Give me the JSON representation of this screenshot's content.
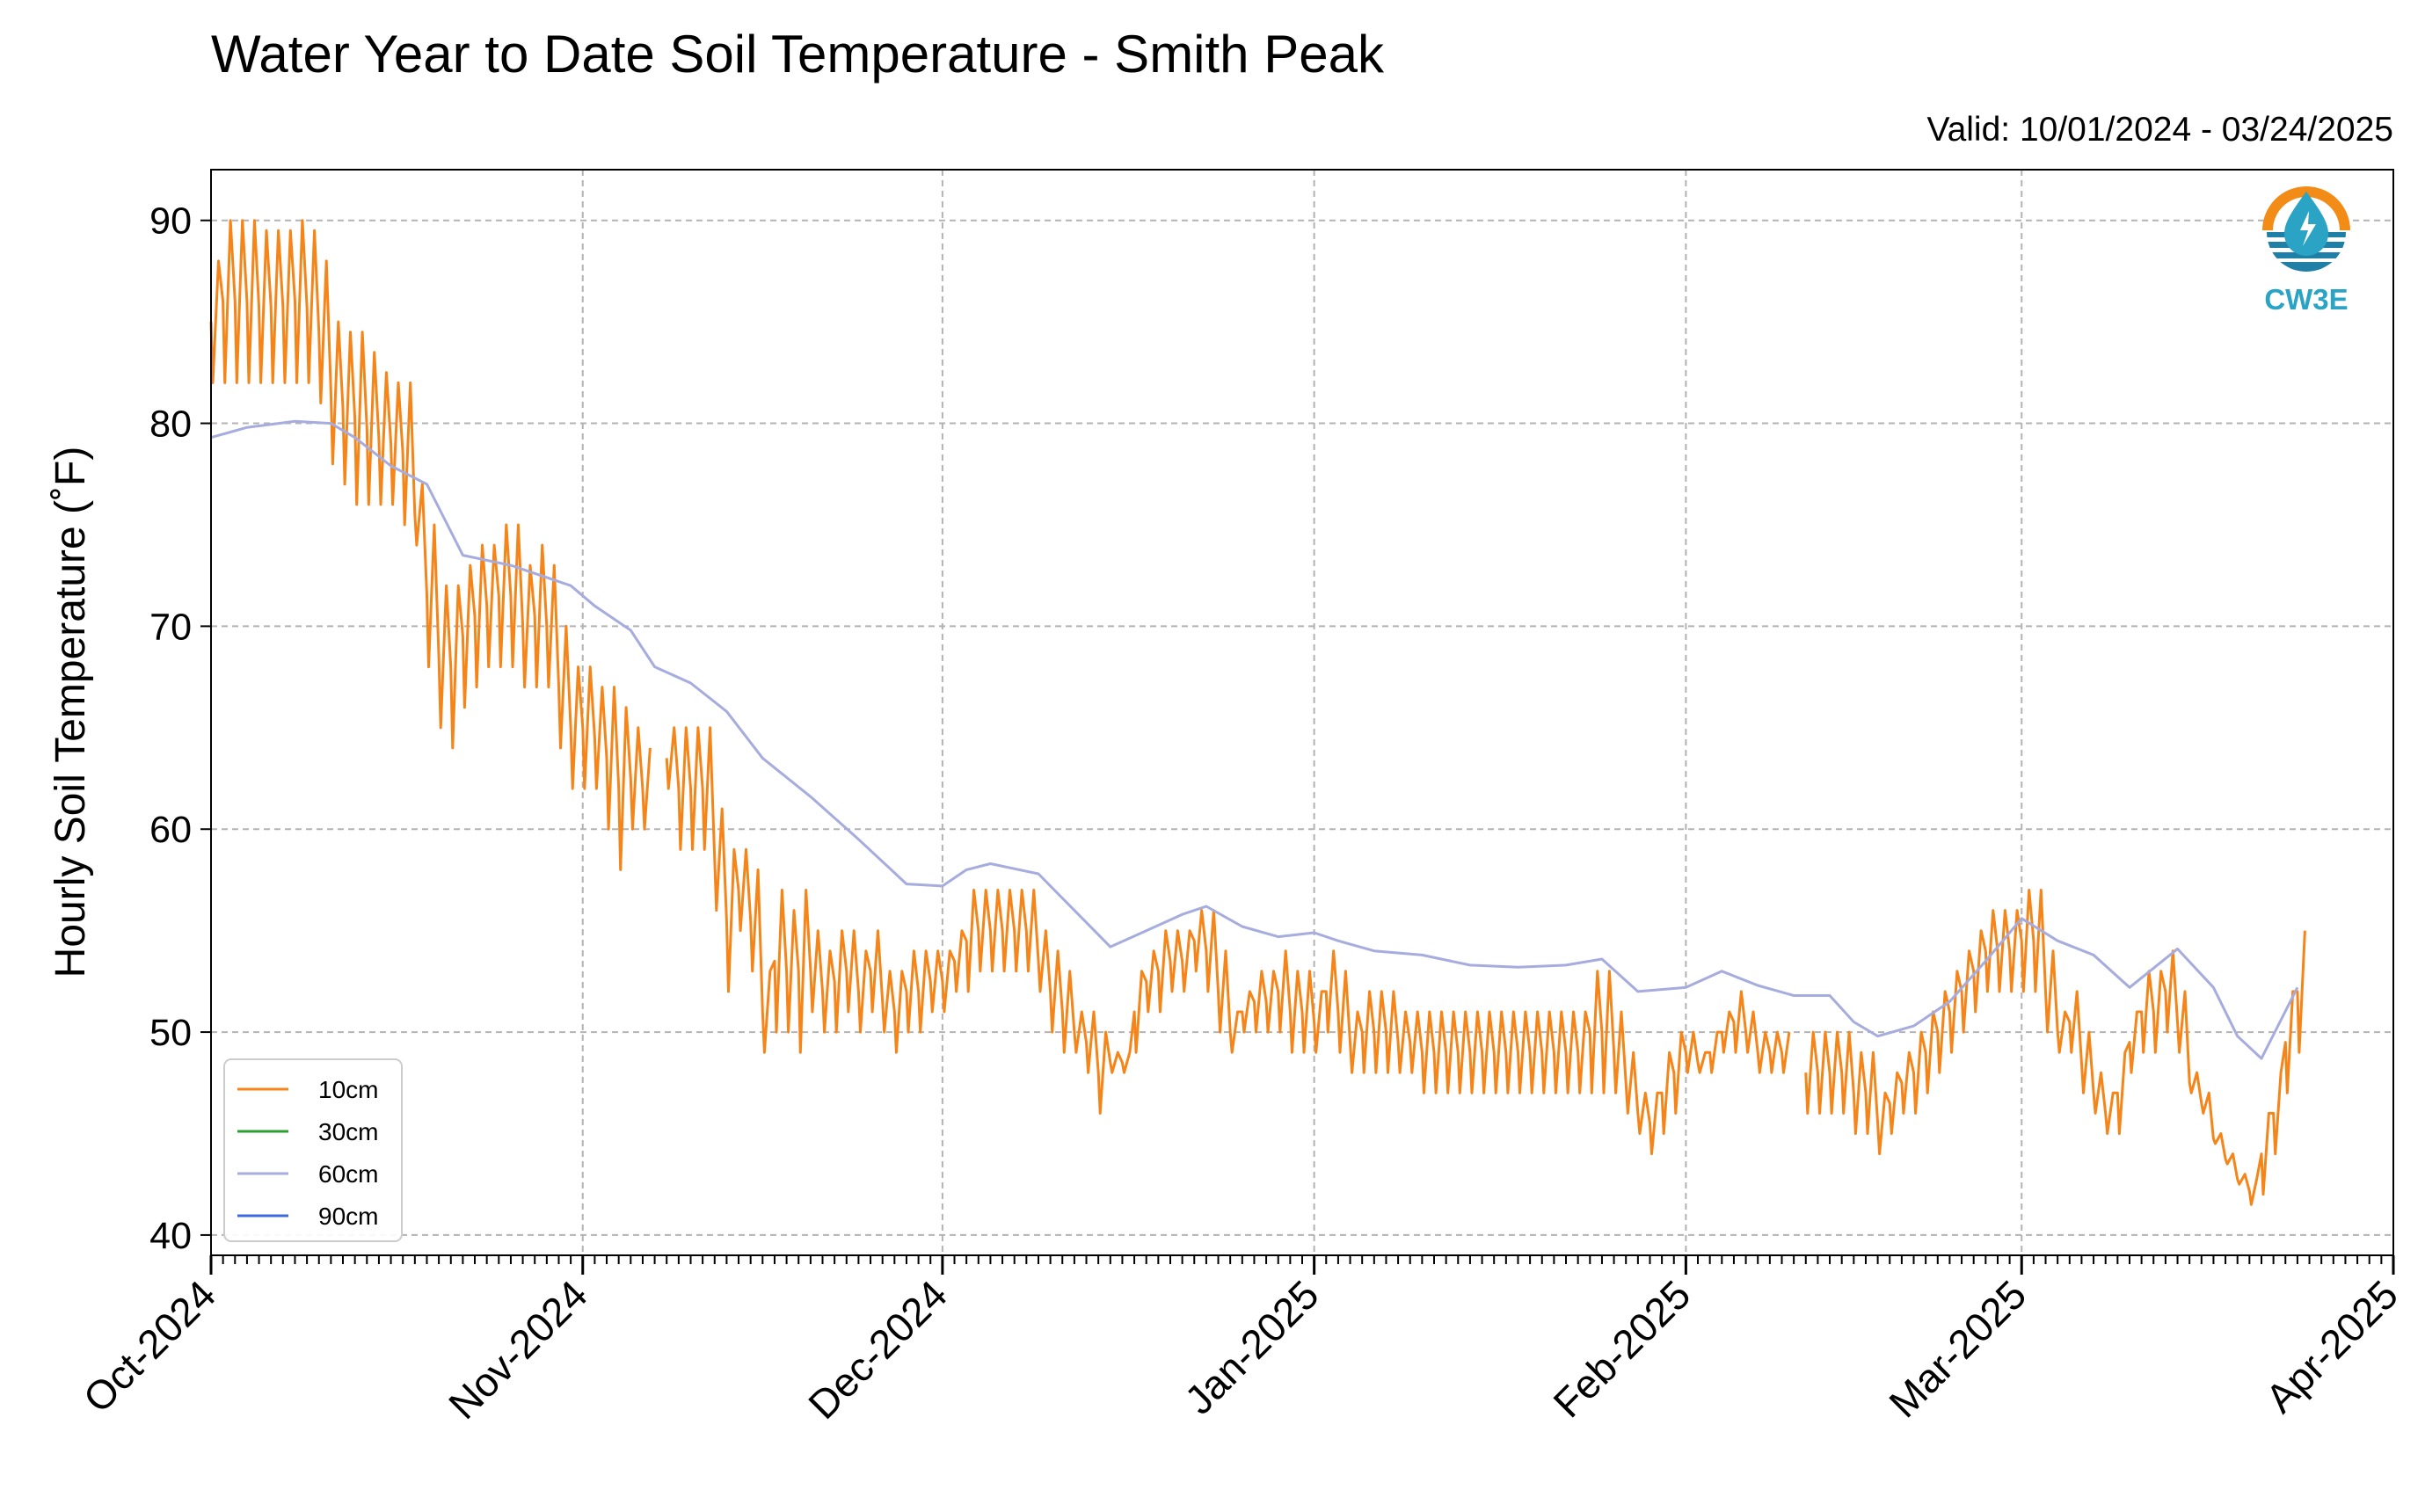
{
  "title": "Water Year to Date Soil Temperature - Smith Peak",
  "valid_range": "Valid: 10/01/2024 - 03/24/2025",
  "logo": {
    "text": "CW3E",
    "icon": "cw3e-water-drop-logo",
    "color": "#2aa3c4",
    "accent": "#f28c16"
  },
  "chart_data": {
    "type": "line",
    "title": "Water Year to Date Soil Temperature - Smith Peak",
    "ylabel": "Hourly Soil Temperature (˚F)",
    "xlabel": "",
    "xlim": [
      "2024-10-01",
      "2025-04-01"
    ],
    "ylim": [
      39,
      92.5
    ],
    "yticks": [
      40,
      50,
      60,
      70,
      80,
      90
    ],
    "xticks": [
      {
        "date": "2024-10-01",
        "label": "Oct-2024"
      },
      {
        "date": "2024-11-01",
        "label": "Nov-2024"
      },
      {
        "date": "2024-12-01",
        "label": "Dec-2024"
      },
      {
        "date": "2025-01-01",
        "label": "Jan-2025"
      },
      {
        "date": "2025-02-01",
        "label": "Feb-2025"
      },
      {
        "date": "2025-03-01",
        "label": "Mar-2025"
      },
      {
        "date": "2025-04-01",
        "label": "Apr-2025"
      }
    ],
    "grid": true,
    "legend_position": "lower-left",
    "series": [
      {
        "name": "10cm",
        "color": "#f58518",
        "daily": [
          [
            "2024-10-01",
            82,
            88
          ],
          [
            "2024-10-02",
            82,
            90
          ],
          [
            "2024-10-03",
            82,
            90
          ],
          [
            "2024-10-04",
            82,
            90
          ],
          [
            "2024-10-05",
            82,
            89.5
          ],
          [
            "2024-10-06",
            82,
            89.5
          ],
          [
            "2024-10-07",
            82,
            89.5
          ],
          [
            "2024-10-08",
            82,
            90
          ],
          [
            "2024-10-09",
            82,
            89.5
          ],
          [
            "2024-10-10",
            81,
            88
          ],
          [
            "2024-10-11",
            78,
            85
          ],
          [
            "2024-10-12",
            77,
            84.5
          ],
          [
            "2024-10-13",
            76,
            84.5
          ],
          [
            "2024-10-14",
            76,
            83.5
          ],
          [
            "2024-10-15",
            76,
            82.5
          ],
          [
            "2024-10-16",
            76,
            82
          ],
          [
            "2024-10-17",
            75,
            82
          ],
          [
            "2024-10-18",
            74,
            77
          ],
          [
            "2024-10-19",
            68,
            75
          ],
          [
            "2024-10-20",
            65,
            72
          ],
          [
            "2024-10-21",
            64,
            72
          ],
          [
            "2024-10-22",
            66,
            73
          ],
          [
            "2024-10-23",
            67,
            74
          ],
          [
            "2024-10-24",
            68,
            74
          ],
          [
            "2024-10-25",
            68,
            75
          ],
          [
            "2024-10-26",
            68,
            75
          ],
          [
            "2024-10-27",
            67,
            73
          ],
          [
            "2024-10-28",
            67,
            74
          ],
          [
            "2024-10-29",
            67,
            73
          ],
          [
            "2024-10-30",
            64,
            70
          ],
          [
            "2024-10-31",
            62,
            68
          ],
          [
            "2024-11-01",
            62,
            68
          ],
          [
            "2024-11-02",
            62,
            67
          ],
          [
            "2024-11-03",
            60,
            67
          ],
          [
            "2024-11-04",
            58,
            66
          ],
          [
            "2024-11-05",
            60,
            65
          ],
          [
            "2024-11-06",
            60,
            64
          ],
          [
            "2024-11-07",
            null,
            null
          ],
          [
            "2024-11-08",
            62,
            65
          ],
          [
            "2024-11-09",
            59,
            65
          ],
          [
            "2024-11-10",
            59,
            65
          ],
          [
            "2024-11-11",
            59,
            65
          ],
          [
            "2024-11-12",
            56,
            61
          ],
          [
            "2024-11-13",
            52,
            59
          ],
          [
            "2024-11-14",
            55,
            59
          ],
          [
            "2024-11-15",
            53,
            58
          ],
          [
            "2024-11-16",
            49,
            53
          ],
          [
            "2024-11-17",
            50,
            57
          ],
          [
            "2024-11-18",
            50,
            56
          ],
          [
            "2024-11-19",
            49,
            57
          ],
          [
            "2024-11-20",
            51,
            55
          ],
          [
            "2024-11-21",
            50,
            54
          ],
          [
            "2024-11-22",
            50,
            55
          ],
          [
            "2024-11-23",
            51,
            55
          ],
          [
            "2024-11-24",
            50,
            54
          ],
          [
            "2024-11-25",
            51,
            55
          ],
          [
            "2024-11-26",
            50,
            53
          ],
          [
            "2024-11-27",
            49,
            53
          ],
          [
            "2024-11-28",
            50,
            54
          ],
          [
            "2024-11-29",
            50,
            54
          ],
          [
            "2024-11-30",
            51,
            54
          ],
          [
            "2024-12-01",
            51,
            54
          ],
          [
            "2024-12-02",
            52,
            55
          ],
          [
            "2024-12-03",
            52,
            57
          ],
          [
            "2024-12-04",
            53,
            57
          ],
          [
            "2024-12-05",
            53,
            57
          ],
          [
            "2024-12-06",
            53,
            57
          ],
          [
            "2024-12-07",
            53,
            57
          ],
          [
            "2024-12-08",
            53,
            57
          ],
          [
            "2024-12-09",
            52,
            55
          ],
          [
            "2024-12-10",
            50,
            54
          ],
          [
            "2024-12-11",
            49,
            53
          ],
          [
            "2024-12-12",
            49,
            51
          ],
          [
            "2024-12-13",
            48,
            51
          ],
          [
            "2024-12-14",
            46,
            50
          ],
          [
            "2024-12-15",
            48,
            49
          ],
          [
            "2024-12-16",
            48,
            49
          ],
          [
            "2024-12-17",
            49,
            53
          ],
          [
            "2024-12-18",
            51,
            54
          ],
          [
            "2024-12-19",
            51,
            55
          ],
          [
            "2024-12-20",
            52,
            55
          ],
          [
            "2024-12-21",
            52,
            55
          ],
          [
            "2024-12-22",
            53,
            56
          ],
          [
            "2024-12-23",
            52,
            56
          ],
          [
            "2024-12-24",
            50,
            54
          ],
          [
            "2024-12-25",
            49,
            51
          ],
          [
            "2024-12-26",
            50,
            52
          ],
          [
            "2024-12-27",
            50,
            53
          ],
          [
            "2024-12-28",
            50,
            53
          ],
          [
            "2024-12-29",
            50,
            54
          ],
          [
            "2024-12-30",
            49,
            53
          ],
          [
            "2024-12-31",
            49,
            53
          ],
          [
            "2025-01-01",
            49,
            52
          ],
          [
            "2025-01-02",
            50,
            54
          ],
          [
            "2025-01-03",
            49,
            53
          ],
          [
            "2025-01-04",
            48,
            51
          ],
          [
            "2025-01-05",
            48,
            52
          ],
          [
            "2025-01-06",
            48,
            52
          ],
          [
            "2025-01-07",
            48,
            52
          ],
          [
            "2025-01-08",
            48,
            51
          ],
          [
            "2025-01-09",
            48,
            51
          ],
          [
            "2025-01-10",
            47,
            51
          ],
          [
            "2025-01-11",
            47,
            51
          ],
          [
            "2025-01-12",
            47,
            51
          ],
          [
            "2025-01-13",
            47,
            51
          ],
          [
            "2025-01-14",
            47,
            51
          ],
          [
            "2025-01-15",
            47,
            51
          ],
          [
            "2025-01-16",
            47,
            51
          ],
          [
            "2025-01-17",
            47,
            51
          ],
          [
            "2025-01-18",
            47,
            51
          ],
          [
            "2025-01-19",
            47,
            51
          ],
          [
            "2025-01-20",
            47,
            51
          ],
          [
            "2025-01-21",
            47,
            51
          ],
          [
            "2025-01-22",
            47,
            51
          ],
          [
            "2025-01-23",
            47,
            51
          ],
          [
            "2025-01-24",
            47,
            53
          ],
          [
            "2025-01-25",
            47,
            53
          ],
          [
            "2025-01-26",
            47,
            51
          ],
          [
            "2025-01-27",
            46,
            49
          ],
          [
            "2025-01-28",
            45,
            47
          ],
          [
            "2025-01-29",
            44,
            47
          ],
          [
            "2025-01-30",
            45,
            49
          ],
          [
            "2025-01-31",
            46,
            50
          ],
          [
            "2025-02-01",
            48,
            50
          ],
          [
            "2025-02-02",
            48,
            49
          ],
          [
            "2025-02-03",
            48,
            50
          ],
          [
            "2025-02-04",
            49,
            51
          ],
          [
            "2025-02-05",
            49,
            52
          ],
          [
            "2025-02-06",
            49,
            51
          ],
          [
            "2025-02-07",
            48,
            50
          ],
          [
            "2025-02-08",
            48,
            50
          ],
          [
            "2025-02-09",
            48,
            50
          ],
          [
            "2025-02-10",
            null,
            null
          ],
          [
            "2025-02-11",
            46,
            50
          ],
          [
            "2025-02-12",
            46,
            50
          ],
          [
            "2025-02-13",
            46,
            50
          ],
          [
            "2025-02-14",
            46,
            50
          ],
          [
            "2025-02-15",
            45,
            49
          ],
          [
            "2025-02-16",
            45,
            49
          ],
          [
            "2025-02-17",
            44,
            47
          ],
          [
            "2025-02-18",
            45,
            48
          ],
          [
            "2025-02-19",
            46,
            49
          ],
          [
            "2025-02-20",
            46,
            50
          ],
          [
            "2025-02-21",
            47,
            51
          ],
          [
            "2025-02-22",
            48,
            52
          ],
          [
            "2025-02-23",
            49,
            53
          ],
          [
            "2025-02-24",
            50,
            54
          ],
          [
            "2025-02-25",
            51,
            55
          ],
          [
            "2025-02-26",
            52,
            56
          ],
          [
            "2025-02-27",
            52,
            56
          ],
          [
            "2025-02-28",
            52,
            56
          ],
          [
            "2025-03-01",
            52,
            57
          ],
          [
            "2025-03-02",
            52,
            57
          ],
          [
            "2025-03-03",
            50,
            54
          ],
          [
            "2025-03-04",
            49,
            51
          ],
          [
            "2025-03-05",
            49,
            52
          ],
          [
            "2025-03-06",
            47,
            50
          ],
          [
            "2025-03-07",
            46,
            48
          ],
          [
            "2025-03-08",
            45,
            47
          ],
          [
            "2025-03-09",
            45,
            49
          ],
          [
            "2025-03-10",
            48,
            51
          ],
          [
            "2025-03-11",
            49,
            53
          ],
          [
            "2025-03-12",
            49,
            53
          ],
          [
            "2025-03-13",
            50,
            54
          ],
          [
            "2025-03-14",
            49,
            52
          ],
          [
            "2025-03-15",
            47,
            48
          ],
          [
            "2025-03-16",
            46,
            47
          ],
          [
            "2025-03-17",
            44.5,
            45
          ],
          [
            "2025-03-18",
            43.5,
            44
          ],
          [
            "2025-03-19",
            42.5,
            43
          ],
          [
            "2025-03-20",
            41.5,
            42.8
          ],
          [
            "2025-03-21",
            42,
            46
          ],
          [
            "2025-03-22",
            44,
            48
          ],
          [
            "2025-03-23",
            47,
            52
          ],
          [
            "2025-03-24",
            49,
            55
          ]
        ]
      },
      {
        "name": "30cm",
        "color": "#2ca02c",
        "points": []
      },
      {
        "name": "60cm",
        "color": "#a6acde",
        "points": [
          [
            "2024-10-01",
            79.3
          ],
          [
            "2024-10-04",
            79.8
          ],
          [
            "2024-10-08",
            80.1
          ],
          [
            "2024-10-11",
            80.0
          ],
          [
            "2024-10-13",
            79.3
          ],
          [
            "2024-10-16",
            77.9
          ],
          [
            "2024-10-19",
            77.0
          ],
          [
            "2024-10-22",
            73.5
          ],
          [
            "2024-10-26",
            73.0
          ],
          [
            "2024-10-31",
            72.0
          ],
          [
            "2024-11-02",
            71.0
          ],
          [
            "2024-11-05",
            69.8
          ],
          [
            "2024-11-07",
            68.0
          ],
          [
            "2024-11-10",
            67.2
          ],
          [
            "2024-11-13",
            65.8
          ],
          [
            "2024-11-16",
            63.5
          ],
          [
            "2024-11-20",
            61.6
          ],
          [
            "2024-11-24",
            59.5
          ],
          [
            "2024-11-28",
            57.3
          ],
          [
            "2024-12-01",
            57.2
          ],
          [
            "2024-12-03",
            58.0
          ],
          [
            "2024-12-05",
            58.3
          ],
          [
            "2024-12-09",
            57.8
          ],
          [
            "2024-12-12",
            56.0
          ],
          [
            "2024-12-15",
            54.2
          ],
          [
            "2024-12-18",
            55.0
          ],
          [
            "2024-12-21",
            55.8
          ],
          [
            "2024-12-23",
            56.2
          ],
          [
            "2024-12-26",
            55.2
          ],
          [
            "2024-12-29",
            54.7
          ],
          [
            "2025-01-01",
            54.9
          ],
          [
            "2025-01-03",
            54.5
          ],
          [
            "2025-01-06",
            54.0
          ],
          [
            "2025-01-10",
            53.8
          ],
          [
            "2025-01-14",
            53.3
          ],
          [
            "2025-01-18",
            53.2
          ],
          [
            "2025-01-22",
            53.3
          ],
          [
            "2025-01-25",
            53.6
          ],
          [
            "2025-01-28",
            52.0
          ],
          [
            "2025-02-01",
            52.2
          ],
          [
            "2025-02-04",
            53.0
          ],
          [
            "2025-02-07",
            52.3
          ],
          [
            "2025-02-10",
            51.8
          ],
          [
            "2025-02-13",
            51.8
          ],
          [
            "2025-02-15",
            50.5
          ],
          [
            "2025-02-17",
            49.8
          ],
          [
            "2025-02-20",
            50.3
          ],
          [
            "2025-02-23",
            51.5
          ],
          [
            "2025-02-26",
            53.5
          ],
          [
            "2025-03-01",
            55.6
          ],
          [
            "2025-03-04",
            54.5
          ],
          [
            "2025-03-07",
            53.8
          ],
          [
            "2025-03-10",
            52.2
          ],
          [
            "2025-03-14",
            54.1
          ],
          [
            "2025-03-17",
            52.2
          ],
          [
            "2025-03-19",
            49.8
          ],
          [
            "2025-03-21",
            48.7
          ],
          [
            "2025-03-24",
            52.2
          ]
        ]
      },
      {
        "name": "90cm",
        "color": "#3c6be0",
        "points": []
      }
    ]
  }
}
